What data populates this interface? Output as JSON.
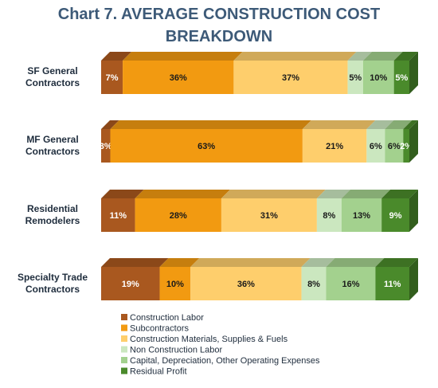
{
  "chart_data": {
    "type": "bar",
    "subtype": "stacked-horizontal-100",
    "title": "Chart 7. AVERAGE CONSTRUCTION COST BREAKDOWN",
    "title_lines": [
      "Chart 7. AVERAGE CONSTRUCTION COST",
      "BREAKDOWN"
    ],
    "value_suffix": "%",
    "legend_position": "bottom-left",
    "categories": [
      {
        "label_lines": [
          "SF General",
          "Contractors"
        ]
      },
      {
        "label_lines": [
          "MF General",
          "Contractors"
        ]
      },
      {
        "label_lines": [
          "Residential",
          "Remodelers"
        ]
      },
      {
        "label_lines": [
          "Specialty Trade",
          "Contractors"
        ]
      }
    ],
    "series": [
      {
        "name": "Construction Labor",
        "color": "#A9581F",
        "label_color": "#ffffff",
        "values": [
          7,
          3,
          11,
          19
        ]
      },
      {
        "name": "Subcontractors",
        "color": "#F29A11",
        "label_color": "#1a1a1a",
        "values": [
          36,
          63,
          28,
          10
        ]
      },
      {
        "name": "Construction Materials, Supplies & Fuels",
        "color": "#FECE6C",
        "label_color": "#1a1a1a",
        "values": [
          37,
          21,
          31,
          36
        ]
      },
      {
        "name": "Non Construction Labor",
        "color": "#CBE7BF",
        "label_color": "#1a1a1a",
        "values": [
          5,
          6,
          8,
          8
        ]
      },
      {
        "name": "Capital, Depreciation, Other Operating Expenses",
        "color": "#A3D18E",
        "label_color": "#1a1a1a",
        "values": [
          10,
          6,
          13,
          16
        ]
      },
      {
        "name": "Residual Profit",
        "color": "#4A8A2B",
        "label_color": "#ffffff",
        "values": [
          5,
          2,
          9,
          11
        ]
      }
    ]
  }
}
